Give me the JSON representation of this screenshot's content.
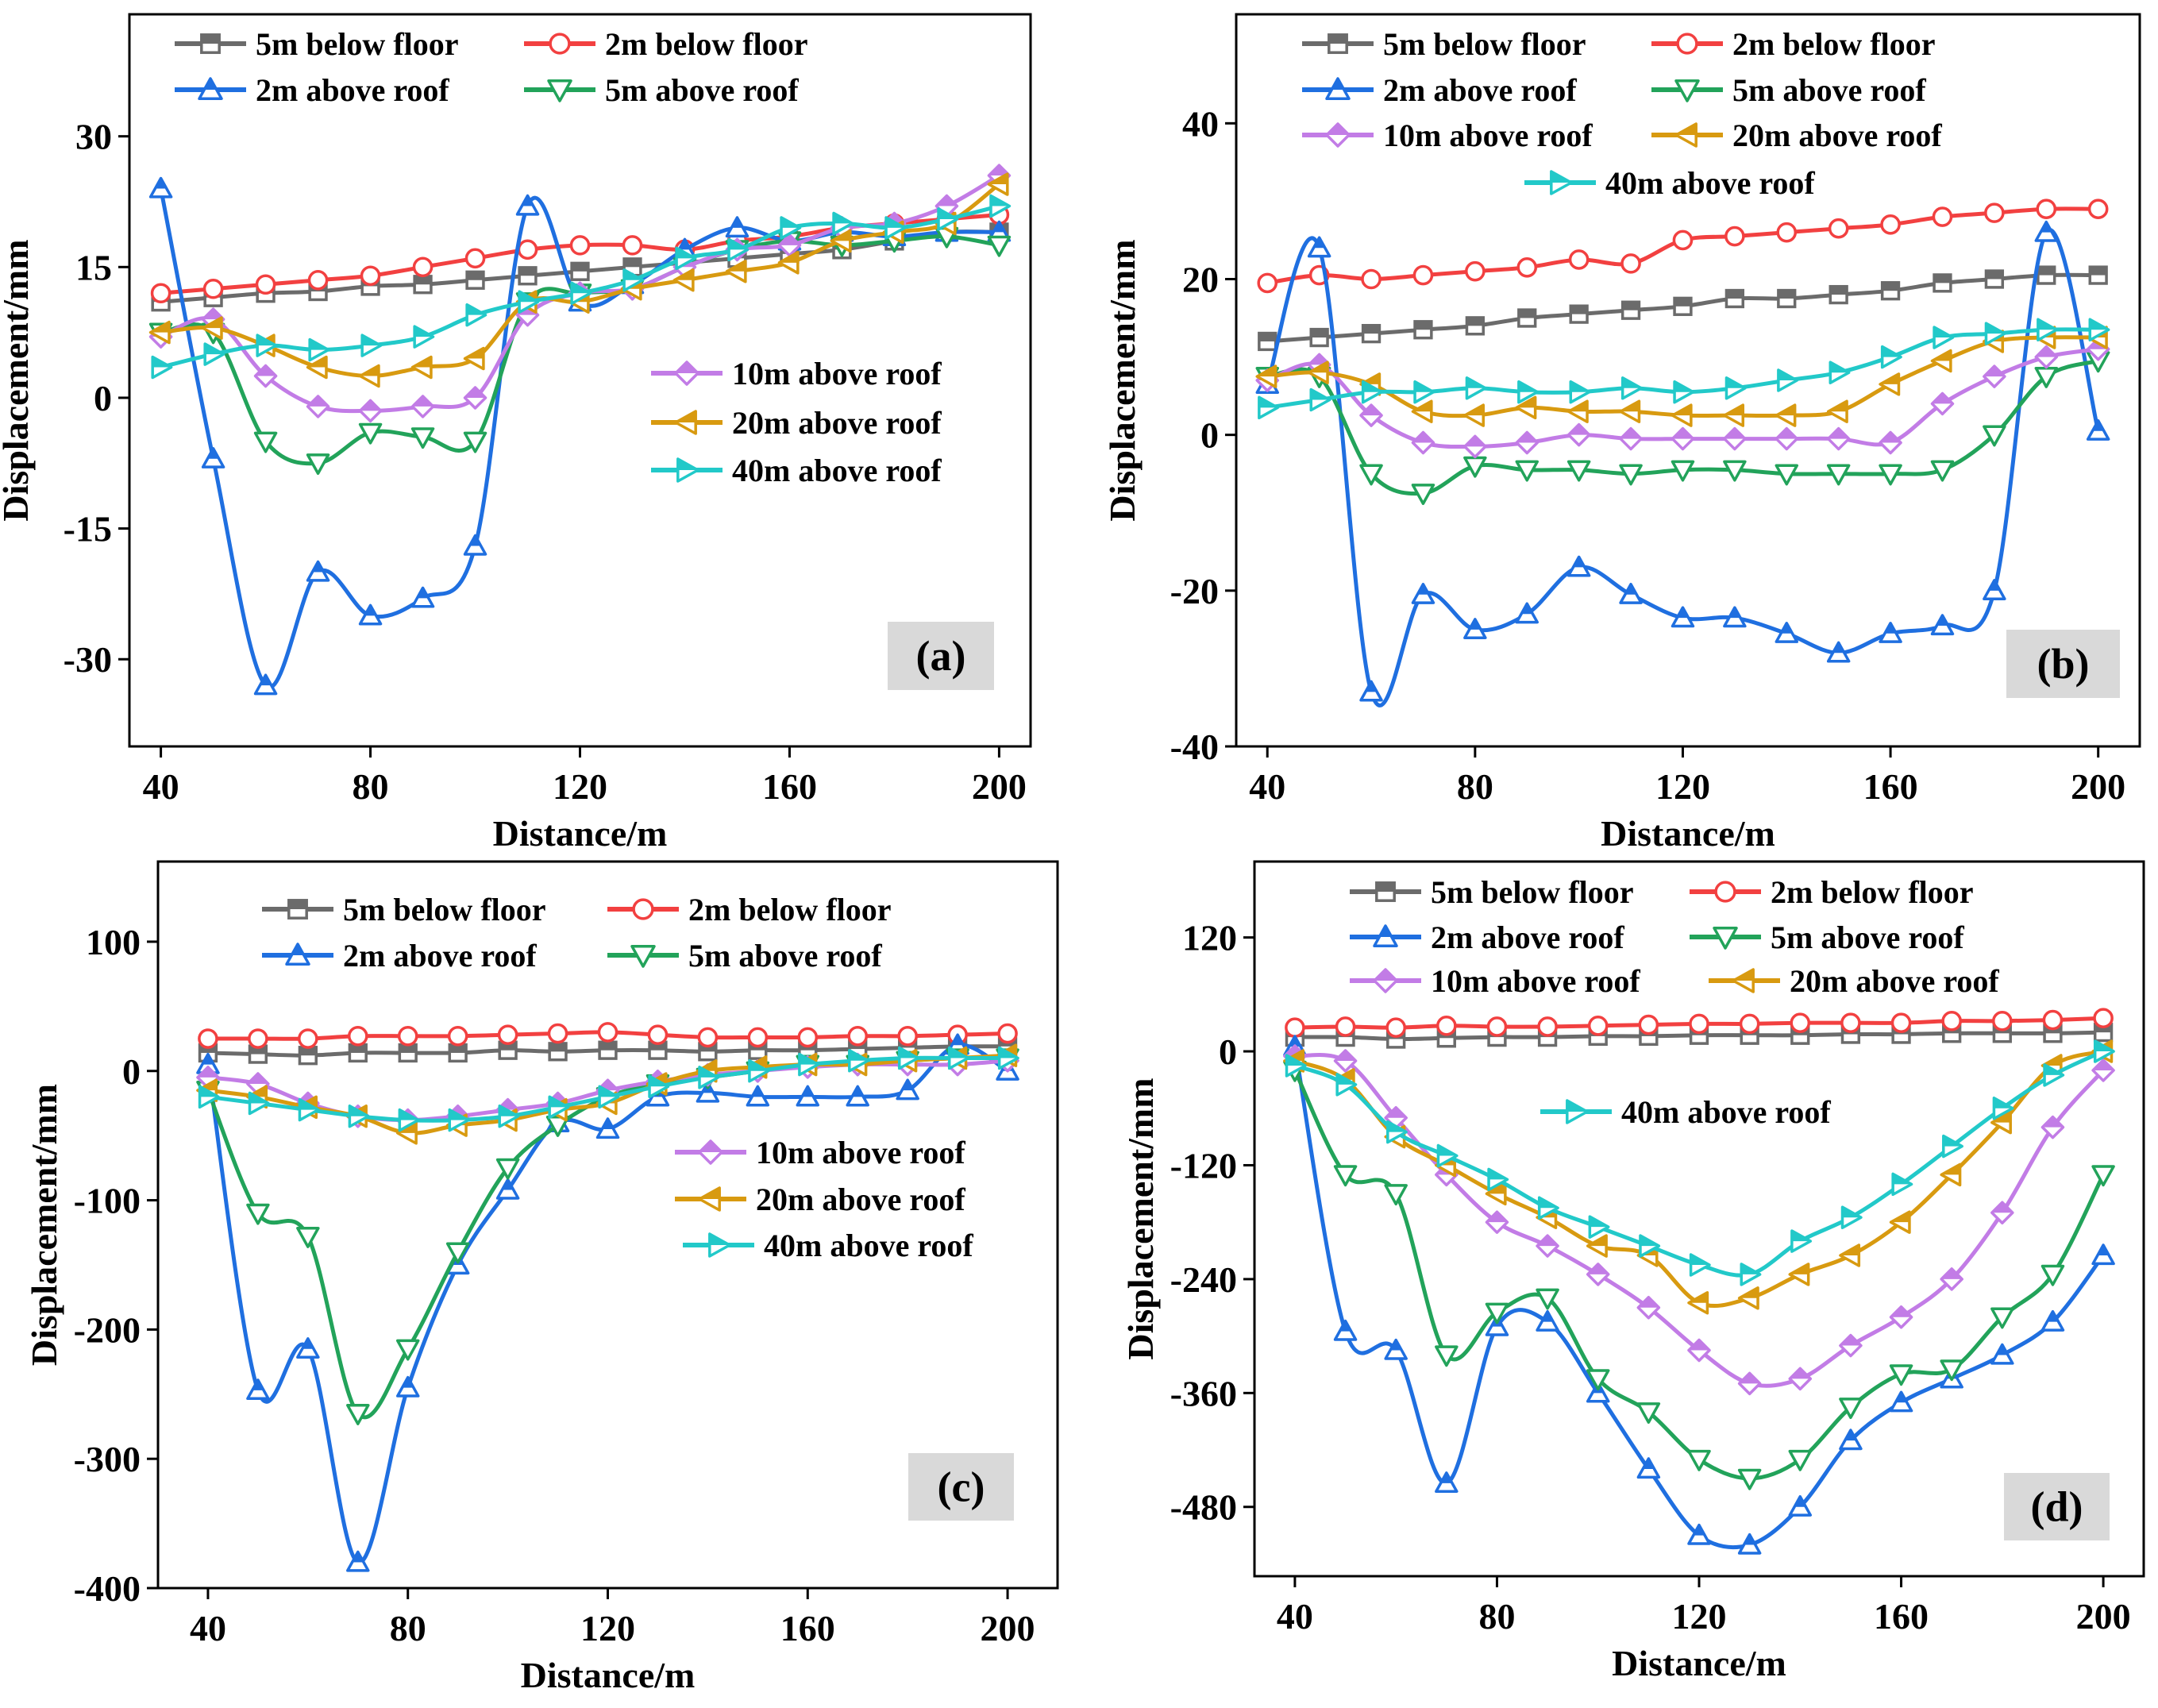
{
  "styles": {
    "5m below floor": {
      "color": "#6b6b6b",
      "marker": "square"
    },
    "2m below floor": {
      "color": "#f24040",
      "marker": "circle"
    },
    "2m above roof": {
      "color": "#1f6fe0",
      "marker": "triangle-up"
    },
    "5m above roof": {
      "color": "#22a35a",
      "marker": "triangle-down"
    },
    "10m above roof": {
      "color": "#c27ce6",
      "marker": "diamond"
    },
    "20m above roof": {
      "color": "#d89a10",
      "marker": "triangle-left"
    },
    "40m above roof": {
      "color": "#22c9c9",
      "marker": "triangle-right"
    }
  },
  "chart_data": [
    {
      "type": "line",
      "panel": "(a)",
      "xlabel": "Distance/m",
      "ylabel": "Displacement/mm",
      "xlim": [
        34,
        206
      ],
      "ylim": [
        -40,
        44
      ],
      "xticks": [
        40,
        80,
        120,
        160,
        200
      ],
      "yticks": [
        -30,
        -15,
        0,
        15,
        30
      ],
      "yticklabels": [
        "-30",
        "-15",
        "0",
        "15",
        "30"
      ],
      "x": [
        40,
        50,
        60,
        70,
        80,
        90,
        100,
        110,
        120,
        130,
        140,
        150,
        160,
        170,
        180,
        190,
        200
      ],
      "series": [
        {
          "name": "5m below floor",
          "values": [
            11,
            11.5,
            12,
            12.2,
            12.8,
            13,
            13.5,
            14,
            14.5,
            15,
            15.5,
            16,
            16.5,
            17,
            18,
            19,
            19
          ]
        },
        {
          "name": "2m below floor",
          "values": [
            12,
            12.5,
            13,
            13.5,
            14,
            15,
            16,
            17,
            17.5,
            17.5,
            17,
            18,
            18.5,
            19.5,
            20,
            20.5,
            21
          ]
        },
        {
          "name": "2m above roof",
          "values": [
            24,
            -7,
            -33,
            -20,
            -25,
            -23,
            -17,
            22,
            11,
            13,
            17,
            19.5,
            18,
            19,
            18.5,
            19,
            19
          ]
        },
        {
          "name": "5m above roof",
          "values": [
            7.5,
            7.5,
            -5,
            -7.5,
            -4,
            -4.5,
            -5,
            11,
            12,
            12.5,
            15,
            17,
            18,
            17.5,
            18,
            18.5,
            17.5
          ]
        },
        {
          "name": "10m above roof",
          "values": [
            7,
            9,
            2.5,
            -1,
            -1.5,
            -1,
            0,
            9.5,
            12,
            12.5,
            15,
            17,
            17.5,
            19.5,
            20,
            22,
            25.5
          ]
        },
        {
          "name": "20m above roof",
          "values": [
            7.5,
            8,
            6,
            3.5,
            2.5,
            3.5,
            4.5,
            11,
            11,
            12.5,
            13.5,
            14.5,
            15.5,
            18,
            19,
            20,
            24.5
          ]
        },
        {
          "name": "40m above roof",
          "values": [
            3.5,
            5,
            6,
            5.5,
            6,
            7,
            9.5,
            11,
            12,
            13.5,
            16,
            17,
            19.5,
            20,
            19.5,
            20.5,
            22
          ]
        }
      ],
      "legend": {
        "top": [
          "5m below floor",
          "2m below floor",
          "2m above roof",
          "5m above roof"
        ],
        "inset": [
          "10m above roof",
          "20m above roof",
          "40m above roof"
        ]
      }
    },
    {
      "type": "line",
      "panel": "(b)",
      "xlabel": "Distance/m",
      "ylabel": "Displacement/mm",
      "xlim": [
        34,
        208
      ],
      "ylim": [
        -40,
        54
      ],
      "xticks": [
        40,
        80,
        120,
        160,
        200
      ],
      "yticks": [
        -40,
        -20,
        0,
        20,
        40
      ],
      "yticklabels": [
        "-40",
        "-20",
        "0",
        "20",
        "40"
      ],
      "x": [
        40,
        50,
        60,
        70,
        80,
        90,
        100,
        110,
        120,
        130,
        140,
        150,
        160,
        170,
        180,
        190,
        200
      ],
      "series": [
        {
          "name": "5m below floor",
          "values": [
            12,
            12.5,
            13,
            13.5,
            14,
            15,
            15.5,
            16,
            16.5,
            17.5,
            17.5,
            18,
            18.5,
            19.5,
            20,
            20.5,
            20.5
          ]
        },
        {
          "name": "2m below floor",
          "values": [
            19.5,
            20.5,
            20,
            20.5,
            21,
            21.5,
            22.5,
            22,
            25,
            25.5,
            26,
            26.5,
            27,
            28,
            28.5,
            29,
            29
          ]
        },
        {
          "name": "2m above roof",
          "values": [
            6.5,
            24,
            -33,
            -20.5,
            -25,
            -23,
            -17,
            -20.5,
            -23.5,
            -23.5,
            -25.5,
            -28,
            -25.5,
            -24.5,
            -20,
            26,
            0.5
          ]
        },
        {
          "name": "5m above roof",
          "values": [
            7.5,
            7.5,
            -5,
            -7.5,
            -4,
            -4.5,
            -4.5,
            -5,
            -4.5,
            -4.5,
            -5,
            -5,
            -5,
            -4.5,
            0,
            7.5,
            9.5
          ]
        },
        {
          "name": "10m above roof",
          "values": [
            7,
            9,
            2.5,
            -1,
            -1.5,
            -1,
            0,
            -0.5,
            -0.5,
            -0.5,
            -0.5,
            -0.5,
            -1,
            4,
            7.5,
            10,
            11
          ]
        },
        {
          "name": "20m above roof",
          "values": [
            7.5,
            8,
            6.5,
            3,
            2.5,
            3.5,
            3,
            3,
            2.5,
            2.5,
            2.5,
            3,
            6.5,
            9.5,
            12,
            12.5,
            12.5
          ]
        },
        {
          "name": "40m above roof",
          "values": [
            3.5,
            4.5,
            5.5,
            5.5,
            6,
            5.5,
            5.5,
            6,
            5.5,
            6,
            7,
            8,
            10,
            12.5,
            13,
            13.5,
            13.5
          ]
        }
      ],
      "legend": {
        "top": [
          "5m below floor",
          "2m below floor",
          "2m above roof",
          "5m above roof",
          "10m above roof",
          "20m above roof",
          "40m above roof"
        ],
        "inset": []
      }
    },
    {
      "type": "line",
      "panel": "(c)",
      "xlabel": "Distance/m",
      "ylabel": "Displacement/mm",
      "xlim": [
        30,
        210
      ],
      "ylim": [
        -400,
        162
      ],
      "xticks": [
        40,
        80,
        120,
        160,
        200
      ],
      "yticks": [
        -400,
        -300,
        -200,
        -100,
        0,
        100
      ],
      "yticklabels": [
        "-400",
        "-300",
        "-200",
        "-100",
        "0",
        "100"
      ],
      "x": [
        40,
        50,
        60,
        70,
        80,
        90,
        100,
        110,
        120,
        130,
        140,
        150,
        160,
        170,
        180,
        190,
        200
      ],
      "series": [
        {
          "name": "5m below floor",
          "values": [
            14,
            13,
            12,
            14,
            14,
            14,
            16,
            15,
            16,
            16,
            15,
            16,
            16,
            17,
            18,
            19,
            19
          ]
        },
        {
          "name": "2m below floor",
          "values": [
            25,
            25,
            25,
            27,
            27,
            27,
            28,
            29,
            30,
            28,
            26,
            26,
            26,
            27,
            27,
            28,
            29
          ]
        },
        {
          "name": "2m above roof",
          "values": [
            5,
            -247,
            -215,
            -380,
            -245,
            -150,
            -92,
            -40,
            -45,
            -20,
            -17,
            -20,
            -20,
            -20,
            -15,
            20,
            0
          ]
        },
        {
          "name": "5m above roof",
          "values": [
            -15,
            -110,
            -128,
            -265,
            -215,
            -140,
            -75,
            -42,
            -20,
            -10,
            -5,
            0,
            5,
            5,
            8,
            10,
            10
          ]
        },
        {
          "name": "10m above roof",
          "values": [
            -5,
            -10,
            -25,
            -35,
            -38,
            -35,
            -30,
            -25,
            -15,
            -8,
            -3,
            0,
            3,
            5,
            5,
            5,
            8
          ]
        },
        {
          "name": "20m above roof",
          "values": [
            -15,
            -20,
            -28,
            -35,
            -48,
            -42,
            -38,
            -30,
            -25,
            -10,
            0,
            3,
            5,
            5,
            8,
            10,
            12
          ]
        },
        {
          "name": "40m above roof",
          "values": [
            -20,
            -25,
            -30,
            -35,
            -38,
            -38,
            -35,
            -28,
            -20,
            -12,
            -5,
            0,
            5,
            8,
            10,
            10,
            10
          ]
        }
      ],
      "legend": {
        "top": [
          "5m below floor",
          "2m below floor",
          "2m above roof",
          "5m above roof"
        ],
        "inset": [
          "10m above roof",
          "20m above roof",
          "40m above roof"
        ]
      }
    },
    {
      "type": "line",
      "panel": "(d)",
      "xlabel": "Distance/m",
      "ylabel": "Displacement/mm",
      "xlim": [
        32,
        208
      ],
      "ylim": [
        -553,
        200
      ],
      "xticks": [
        40,
        80,
        120,
        160,
        200
      ],
      "yticks": [
        -480,
        -360,
        -240,
        -120,
        0,
        120
      ],
      "yticklabels": [
        "-480",
        "-360",
        "-240",
        "-120",
        "0",
        "120"
      ],
      "x": [
        40,
        50,
        60,
        70,
        80,
        90,
        100,
        110,
        120,
        130,
        140,
        150,
        160,
        170,
        180,
        190,
        200
      ],
      "series": [
        {
          "name": "5m below floor",
          "values": [
            15,
            15,
            13,
            14,
            15,
            15,
            16,
            16,
            17,
            17,
            17,
            18,
            18,
            19,
            19,
            19,
            20
          ]
        },
        {
          "name": "2m below floor",
          "values": [
            25,
            26,
            25,
            27,
            26,
            26,
            27,
            28,
            29,
            29,
            30,
            30,
            30,
            32,
            32,
            33,
            35
          ]
        },
        {
          "name": "2m above roof",
          "values": [
            5,
            -295,
            -315,
            -455,
            -290,
            -285,
            -360,
            -440,
            -510,
            -520,
            -480,
            -410,
            -370,
            -345,
            -320,
            -285,
            -215
          ]
        },
        {
          "name": "5m above roof",
          "values": [
            -20,
            -130,
            -150,
            -320,
            -275,
            -260,
            -345,
            -380,
            -430,
            -450,
            -430,
            -375,
            -340,
            -335,
            -280,
            -235,
            -130
          ]
        },
        {
          "name": "10m above roof",
          "values": [
            -5,
            -10,
            -70,
            -130,
            -180,
            -205,
            -235,
            -270,
            -315,
            -350,
            -345,
            -310,
            -280,
            -240,
            -170,
            -80,
            -20
          ]
        },
        {
          "name": "20m above roof",
          "values": [
            -10,
            -30,
            -90,
            -120,
            -150,
            -175,
            -205,
            -215,
            -265,
            -260,
            -235,
            -215,
            -180,
            -130,
            -75,
            -15,
            0
          ]
        },
        {
          "name": "40m above roof",
          "values": [
            -15,
            -35,
            -85,
            -110,
            -135,
            -165,
            -185,
            -205,
            -225,
            -235,
            -200,
            -175,
            -140,
            -100,
            -60,
            -25,
            0
          ]
        }
      ],
      "legend": {
        "top": [
          "5m below floor",
          "2m below floor",
          "2m above roof",
          "5m above roof",
          "10m above roof",
          "20m above roof"
        ],
        "inset": [
          "40m above roof"
        ]
      }
    }
  ]
}
